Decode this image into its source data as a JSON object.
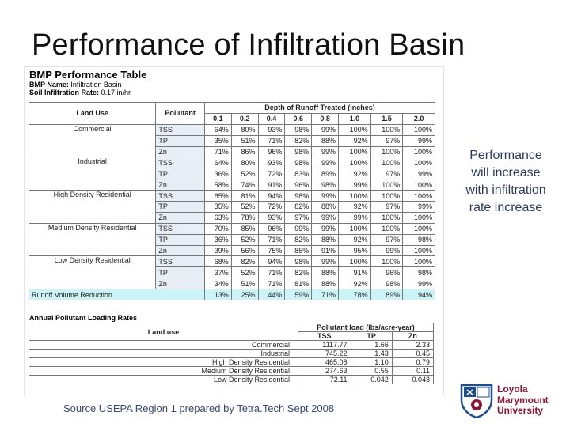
{
  "slide": {
    "title": "Performance of Infiltration Basin",
    "side_note": "Performance will increase with infiltration rate increase",
    "source": "Source USEPA Region 1 prepared by Tetra.Tech Sept 2008"
  },
  "performance_table": {
    "heading": "BMP Performance Table",
    "bmp_name_label": "BMP Name:",
    "bmp_name": "Infiltration Basin",
    "soil_rate_label": "Soil Infiltration Rate:",
    "soil_rate": "0.17 in/hr",
    "col_land_use": "Land Use",
    "col_pollutant": "Pollutant",
    "col_depth": "Depth of Runoff Treated (inches)",
    "depths": [
      "0.1",
      "0.2",
      "0.4",
      "0.6",
      "0.8",
      "1.0",
      "1.5",
      "2.0"
    ],
    "groups": [
      {
        "land_use": "Commercial",
        "rows": [
          {
            "pollutant": "TSS",
            "values": [
              "64%",
              "80%",
              "93%",
              "98%",
              "99%",
              "100%",
              "100%",
              "100%"
            ]
          },
          {
            "pollutant": "TP",
            "values": [
              "35%",
              "51%",
              "71%",
              "82%",
              "88%",
              "92%",
              "97%",
              "99%"
            ]
          },
          {
            "pollutant": "Zn",
            "values": [
              "71%",
              "86%",
              "96%",
              "98%",
              "99%",
              "100%",
              "100%",
              "100%"
            ]
          }
        ]
      },
      {
        "land_use": "Industrial",
        "rows": [
          {
            "pollutant": "TSS",
            "values": [
              "64%",
              "80%",
              "93%",
              "98%",
              "99%",
              "100%",
              "100%",
              "100%"
            ]
          },
          {
            "pollutant": "TP",
            "values": [
              "36%",
              "52%",
              "72%",
              "83%",
              "89%",
              "92%",
              "97%",
              "99%"
            ]
          },
          {
            "pollutant": "Zn",
            "values": [
              "58%",
              "74%",
              "91%",
              "96%",
              "98%",
              "99%",
              "100%",
              "100%"
            ]
          }
        ]
      },
      {
        "land_use": "High Density Residential",
        "rows": [
          {
            "pollutant": "TSS",
            "values": [
              "65%",
              "81%",
              "94%",
              "98%",
              "99%",
              "100%",
              "100%",
              "100%"
            ]
          },
          {
            "pollutant": "TP",
            "values": [
              "35%",
              "52%",
              "72%",
              "82%",
              "88%",
              "92%",
              "97%",
              "99%"
            ]
          },
          {
            "pollutant": "Zn",
            "values": [
              "63%",
              "78%",
              "93%",
              "97%",
              "99%",
              "99%",
              "100%",
              "100%"
            ]
          }
        ]
      },
      {
        "land_use": "Medium Density Residential",
        "rows": [
          {
            "pollutant": "TSS",
            "values": [
              "70%",
              "85%",
              "96%",
              "99%",
              "99%",
              "100%",
              "100%",
              "100%"
            ]
          },
          {
            "pollutant": "TP",
            "values": [
              "36%",
              "52%",
              "71%",
              "82%",
              "88%",
              "92%",
              "97%",
              "98%"
            ]
          },
          {
            "pollutant": "Zn",
            "values": [
              "39%",
              "56%",
              "75%",
              "85%",
              "91%",
              "95%",
              "99%",
              "100%"
            ]
          }
        ]
      },
      {
        "land_use": "Low Density Residential",
        "rows": [
          {
            "pollutant": "TSS",
            "values": [
              "68%",
              "82%",
              "94%",
              "98%",
              "99%",
              "100%",
              "100%",
              "100%"
            ]
          },
          {
            "pollutant": "TP",
            "values": [
              "37%",
              "52%",
              "71%",
              "82%",
              "88%",
              "91%",
              "96%",
              "98%"
            ]
          },
          {
            "pollutant": "Zn",
            "values": [
              "34%",
              "51%",
              "71%",
              "81%",
              "88%",
              "92%",
              "98%",
              "99%"
            ]
          }
        ]
      }
    ],
    "runoff_label": "Runoff Volume Reduction",
    "runoff_values": [
      "13%",
      "25%",
      "44%",
      "59%",
      "71%",
      "78%",
      "89%",
      "94%"
    ]
  },
  "loading_table": {
    "heading": "Annual Pollutant Loading Rates",
    "col_land_use": "Land use",
    "col_load": "Pollutant load (lbs/acre-year)",
    "col_tss": "TSS",
    "col_tp": "TP",
    "col_zn": "Zn",
    "rows": [
      {
        "land_use": "Commercial",
        "tss": "1117.77",
        "tp": "1.66",
        "zn": "2.33"
      },
      {
        "land_use": "Industrial",
        "tss": "745.22",
        "tp": "1.43",
        "zn": "0.45"
      },
      {
        "land_use": "High Density Residential",
        "tss": "465.08",
        "tp": "1.10",
        "zn": "0.79"
      },
      {
        "land_use": "Medium Density Residential",
        "tss": "274.63",
        "tp": "0.55",
        "zn": "0.11"
      },
      {
        "land_use": "Low Density Residential",
        "tss": "72.11",
        "tp": "0.042",
        "zn": "0.043"
      }
    ]
  },
  "logo": {
    "name_lines": [
      "Loyola",
      "Marymount",
      "University"
    ],
    "brand_color": "#8a1538",
    "accent_color": "#1f4e8c",
    "icon": "university-crest-icon"
  }
}
